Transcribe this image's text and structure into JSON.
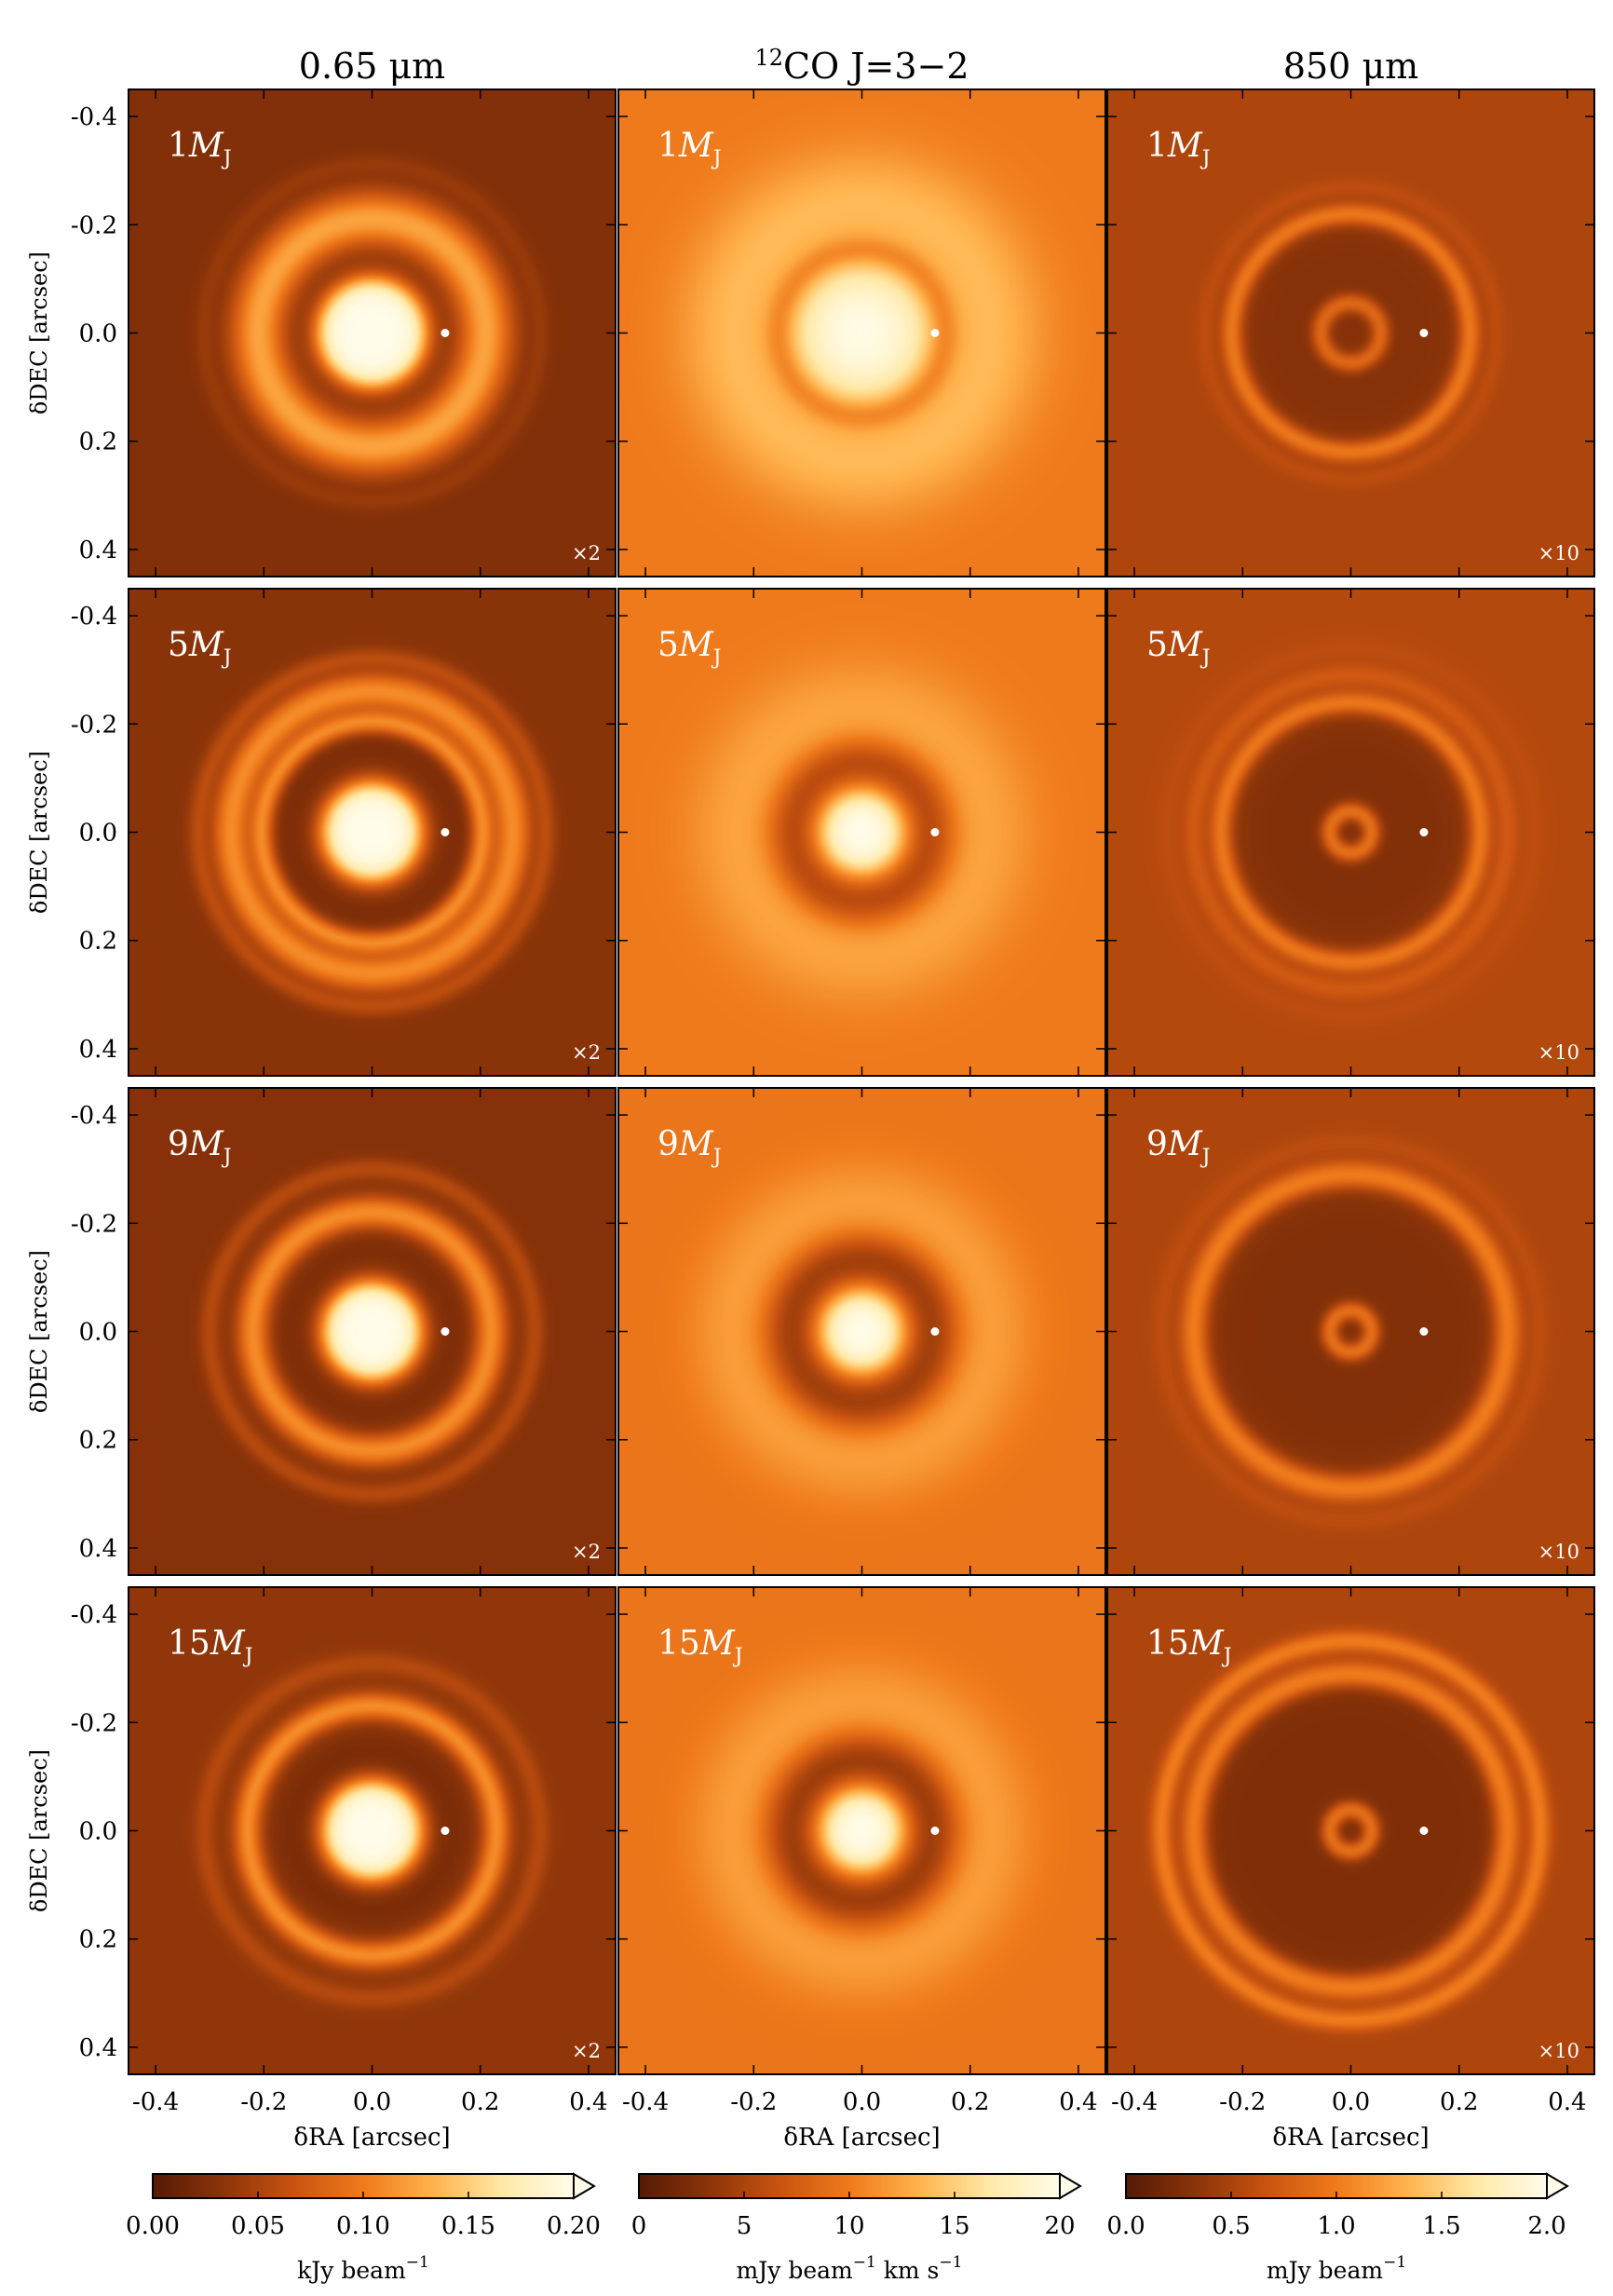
{
  "figure": {
    "column_titles": [
      "0.65 μm",
      "CO J=3−2",
      "850 μm"
    ],
    "column_title_sup": "12",
    "row_labels": [
      "1",
      "5",
      "9",
      "15"
    ],
    "mass_unit": "M",
    "mass_sub": "J",
    "multipliers": [
      "×2",
      "",
      "×10"
    ],
    "ylabel": "δDEC [arcsec]",
    "xlabel": "δRA [arcsec]",
    "ticks": [
      "-0.4",
      "-0.2",
      "0.0",
      "0.2",
      "0.4"
    ],
    "colorbars": [
      {
        "ticks": [
          "0.00",
          "0.05",
          "0.10",
          "0.15",
          "0.20"
        ],
        "label": "kJy beam",
        "label_sup": "−1",
        "label_tail": "",
        "label_tail_sup": ""
      },
      {
        "ticks": [
          "0",
          "5",
          "10",
          "15",
          "20"
        ],
        "label": "mJy beam",
        "label_sup": "−1",
        "label_tail": " km s",
        "label_tail_sup": "−1"
      },
      {
        "ticks": [
          "0.0",
          "0.5",
          "1.0",
          "1.5",
          "2.0"
        ],
        "label": "mJy beam",
        "label_sup": "−1",
        "label_tail": "",
        "label_tail_sup": ""
      }
    ]
  },
  "chart_data": {
    "type": "heatmap",
    "description_units": "intensity maps, radii in arcsec",
    "x_range": [
      -0.45,
      0.45
    ],
    "y_range": [
      -0.45,
      0.45
    ],
    "planet_position_arcsec": [
      0.135,
      0.0
    ],
    "colormap": [
      "#551a06",
      "#8b3409",
      "#c85310",
      "#ef7a1b",
      "#ffb34d",
      "#ffe9a8",
      "#fffcea"
    ],
    "panels": [
      {
        "row": 0,
        "col": 0,
        "mass_MJ": 1,
        "bg": 0.14,
        "features": [
          {
            "type": "disk",
            "r": 0.1,
            "v": 1.0,
            "edge": 0.012
          },
          {
            "type": "gap",
            "r": 0.15,
            "w": 0.025,
            "v": 0.13
          },
          {
            "type": "ring",
            "r": 0.21,
            "w": 0.05,
            "v": 0.62
          },
          {
            "type": "ring",
            "r": 0.31,
            "w": 0.02,
            "v": 0.2
          }
        ]
      },
      {
        "row": 0,
        "col": 1,
        "mass_MJ": 1,
        "bg": 0.5,
        "features": [
          {
            "type": "disk",
            "r": 0.12,
            "v": 1.0,
            "edge": 0.03
          },
          {
            "type": "gap",
            "r": 0.155,
            "w": 0.03,
            "v": 0.12
          },
          {
            "type": "ring",
            "r": 0.24,
            "w": 0.1,
            "v": 0.68
          }
        ]
      },
      {
        "row": 0,
        "col": 2,
        "mass_MJ": 1,
        "bg": 0.26,
        "features": [
          {
            "type": "plateau",
            "r": 0.22,
            "v": 0.15
          },
          {
            "type": "ring",
            "r": 0.055,
            "w": 0.018,
            "v": 0.42
          },
          {
            "type": "ring",
            "r": 0.22,
            "w": 0.02,
            "v": 0.48
          },
          {
            "type": "ring",
            "r": 0.27,
            "w": 0.018,
            "v": 0.3
          }
        ]
      },
      {
        "row": 1,
        "col": 0,
        "mass_MJ": 5,
        "bg": 0.16,
        "features": [
          {
            "type": "disk",
            "r": 0.09,
            "v": 1.0,
            "edge": 0.012
          },
          {
            "type": "gap",
            "r": 0.15,
            "w": 0.045,
            "v": 0.12
          },
          {
            "type": "ring",
            "r": 0.205,
            "w": 0.022,
            "v": 0.55
          },
          {
            "type": "ring",
            "r": 0.26,
            "w": 0.035,
            "v": 0.55
          },
          {
            "type": "ring",
            "r": 0.32,
            "w": 0.02,
            "v": 0.3
          }
        ]
      },
      {
        "row": 1,
        "col": 1,
        "mass_MJ": 5,
        "bg": 0.5,
        "features": [
          {
            "type": "disk",
            "r": 0.07,
            "v": 1.0,
            "edge": 0.015
          },
          {
            "type": "gap",
            "r": 0.14,
            "w": 0.06,
            "v": 0.14
          },
          {
            "type": "ring",
            "r": 0.23,
            "w": 0.09,
            "v": 0.62
          }
        ]
      },
      {
        "row": 1,
        "col": 2,
        "mass_MJ": 5,
        "bg": 0.28,
        "features": [
          {
            "type": "plateau",
            "r": 0.23,
            "v": 0.14
          },
          {
            "type": "ring",
            "r": 0.038,
            "w": 0.018,
            "v": 0.45
          },
          {
            "type": "ring",
            "r": 0.24,
            "w": 0.02,
            "v": 0.48
          },
          {
            "type": "ring",
            "r": 0.29,
            "w": 0.02,
            "v": 0.36
          },
          {
            "type": "ring",
            "r": 0.34,
            "w": 0.02,
            "v": 0.3
          }
        ]
      },
      {
        "row": 2,
        "col": 0,
        "mass_MJ": 9,
        "bg": 0.15,
        "features": [
          {
            "type": "disk",
            "r": 0.09,
            "v": 1.0,
            "edge": 0.012
          },
          {
            "type": "gap",
            "r": 0.14,
            "w": 0.05,
            "v": 0.12
          },
          {
            "type": "ring",
            "r": 0.22,
            "w": 0.03,
            "v": 0.55
          },
          {
            "type": "ring",
            "r": 0.3,
            "w": 0.02,
            "v": 0.28
          }
        ]
      },
      {
        "row": 2,
        "col": 1,
        "mass_MJ": 9,
        "bg": 0.48,
        "features": [
          {
            "type": "disk",
            "r": 0.07,
            "v": 1.0,
            "edge": 0.015
          },
          {
            "type": "gap",
            "r": 0.14,
            "w": 0.065,
            "v": 0.14
          },
          {
            "type": "ring",
            "r": 0.24,
            "w": 0.08,
            "v": 0.6
          }
        ]
      },
      {
        "row": 2,
        "col": 2,
        "mass_MJ": 9,
        "bg": 0.26,
        "features": [
          {
            "type": "plateau",
            "r": 0.28,
            "v": 0.14
          },
          {
            "type": "ring",
            "r": 0.038,
            "w": 0.018,
            "v": 0.45
          },
          {
            "type": "ring",
            "r": 0.29,
            "w": 0.025,
            "v": 0.5
          },
          {
            "type": "ring",
            "r": 0.35,
            "w": 0.02,
            "v": 0.3
          }
        ]
      },
      {
        "row": 3,
        "col": 0,
        "mass_MJ": 15,
        "bg": 0.18,
        "features": [
          {
            "type": "disk",
            "r": 0.09,
            "v": 1.0,
            "edge": 0.012
          },
          {
            "type": "gap",
            "r": 0.14,
            "w": 0.05,
            "v": 0.11
          },
          {
            "type": "ring",
            "r": 0.23,
            "w": 0.025,
            "v": 0.55
          },
          {
            "type": "ring",
            "r": 0.31,
            "w": 0.02,
            "v": 0.28
          }
        ]
      },
      {
        "row": 3,
        "col": 1,
        "mass_MJ": 15,
        "bg": 0.48,
        "features": [
          {
            "type": "disk",
            "r": 0.07,
            "v": 1.0,
            "edge": 0.015
          },
          {
            "type": "gap",
            "r": 0.14,
            "w": 0.065,
            "v": 0.13
          },
          {
            "type": "ring",
            "r": 0.24,
            "w": 0.08,
            "v": 0.6
          }
        ]
      },
      {
        "row": 3,
        "col": 2,
        "mass_MJ": 15,
        "bg": 0.26,
        "features": [
          {
            "type": "plateau",
            "r": 0.3,
            "v": 0.13
          },
          {
            "type": "ring",
            "r": 0.038,
            "w": 0.018,
            "v": 0.45
          },
          {
            "type": "ring",
            "r": 0.29,
            "w": 0.025,
            "v": 0.5
          },
          {
            "type": "ring",
            "r": 0.35,
            "w": 0.02,
            "v": 0.5
          }
        ]
      }
    ]
  }
}
